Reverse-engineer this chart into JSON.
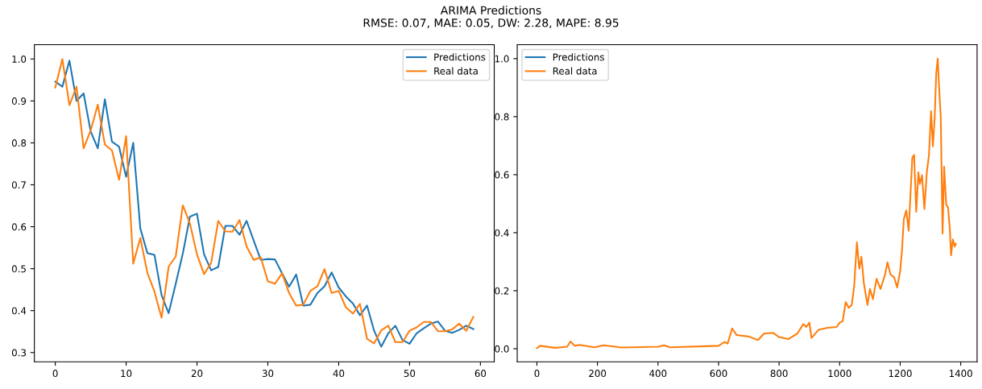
{
  "chart_data": [
    {
      "type": "line",
      "title": "ARIMA Predictions",
      "subtitle": "RMSE: 0.07, MAE: 0.05, DW: 2.28, MAPE: 8.95",
      "x": [
        0,
        1,
        2,
        3,
        4,
        5,
        6,
        7,
        8,
        9,
        10,
        11,
        12,
        13,
        14,
        15,
        16,
        17,
        18,
        19,
        20,
        21,
        22,
        23,
        24,
        25,
        26,
        27,
        28,
        29,
        30,
        31,
        32,
        33,
        34,
        35,
        36,
        37,
        38,
        39,
        40,
        41,
        42,
        43,
        44,
        45,
        46,
        47,
        48,
        49,
        50,
        51,
        52,
        53,
        54,
        55,
        56,
        57,
        58,
        59
      ],
      "series": [
        {
          "name": "Predictions",
          "color": "#1f77b4",
          "values": [
            0.946,
            0.934,
            0.996,
            0.9,
            0.918,
            0.827,
            0.787,
            0.904,
            0.803,
            0.791,
            0.719,
            0.8,
            0.596,
            0.537,
            0.533,
            0.437,
            0.394,
            0.464,
            0.536,
            0.624,
            0.631,
            0.534,
            0.496,
            0.504,
            0.602,
            0.602,
            0.581,
            0.614,
            0.567,
            0.521,
            0.523,
            0.522,
            0.489,
            0.457,
            0.486,
            0.412,
            0.414,
            0.442,
            0.458,
            0.491,
            0.455,
            0.434,
            0.417,
            0.389,
            0.412,
            0.352,
            0.314,
            0.346,
            0.364,
            0.33,
            0.321,
            0.346,
            0.358,
            0.369,
            0.374,
            0.352,
            0.347,
            0.354,
            0.364,
            0.356
          ]
        },
        {
          "name": "Real data",
          "color": "#ff7f0e",
          "values": [
            0.932,
            1.0,
            0.89,
            0.934,
            0.787,
            0.83,
            0.891,
            0.796,
            0.782,
            0.712,
            0.816,
            0.512,
            0.573,
            0.49,
            0.445,
            0.383,
            0.505,
            0.529,
            0.651,
            0.608,
            0.534,
            0.487,
            0.514,
            0.614,
            0.589,
            0.588,
            0.616,
            0.553,
            0.521,
            0.527,
            0.47,
            0.464,
            0.489,
            0.442,
            0.412,
            0.414,
            0.447,
            0.458,
            0.499,
            0.442,
            0.447,
            0.408,
            0.393,
            0.416,
            0.333,
            0.322,
            0.353,
            0.364,
            0.325,
            0.325,
            0.352,
            0.36,
            0.373,
            0.373,
            0.351,
            0.351,
            0.355,
            0.369,
            0.352,
            0.385
          ]
        }
      ],
      "xlim": [
        -2.95,
        61.95
      ],
      "ylim": [
        0.278,
        1.034
      ],
      "xticks": [
        0,
        10,
        20,
        30,
        40,
        50,
        60
      ],
      "yticks": [
        {
          "value": 0.3,
          "label": "0.3"
        },
        {
          "value": 0.4,
          "label": "0.4"
        },
        {
          "value": 0.5,
          "label": "0.5"
        },
        {
          "value": 0.6,
          "label": "0.6"
        },
        {
          "value": 0.7,
          "label": "0.7"
        },
        {
          "value": 0.8,
          "label": "0.8"
        },
        {
          "value": 0.9,
          "label": "0.9"
        },
        {
          "value": 1.0,
          "label": "1.0"
        }
      ],
      "legend": "top right",
      "grid": false
    },
    {
      "type": "line",
      "x": [
        0,
        10,
        60,
        100,
        111,
        125,
        140,
        190,
        220,
        280,
        400,
        420,
        440,
        600,
        620,
        630,
        645,
        660,
        700,
        730,
        750,
        780,
        800,
        830,
        860,
        880,
        890,
        900,
        907,
        930,
        960,
        990,
        1000,
        1010,
        1020,
        1030,
        1040,
        1048,
        1057,
        1065,
        1072,
        1080,
        1092,
        1100,
        1110,
        1122,
        1135,
        1150,
        1158,
        1168,
        1180,
        1190,
        1200,
        1206,
        1212,
        1220,
        1228,
        1240,
        1246,
        1253,
        1260,
        1265,
        1272,
        1280,
        1288,
        1295,
        1302,
        1308,
        1314,
        1319,
        1324,
        1328,
        1334,
        1340,
        1345,
        1352,
        1358,
        1364,
        1368,
        1374,
        1380,
        1384
      ],
      "series": [
        {
          "name": "Predictions",
          "color": "#1f77b4",
          "values": [
            null,
            null,
            null,
            null,
            null,
            null,
            null,
            null,
            null,
            null,
            null,
            null,
            null,
            null,
            null,
            null,
            null,
            null,
            null,
            null,
            null,
            null,
            null,
            null,
            null,
            null,
            null,
            null,
            null,
            null,
            null,
            null,
            null,
            null,
            null,
            null,
            null,
            null,
            null,
            null,
            null,
            null,
            null,
            null,
            null,
            null,
            null,
            null,
            null,
            null,
            null,
            null,
            null,
            null,
            null,
            null,
            null,
            null,
            null,
            null,
            null,
            null,
            null,
            null,
            null,
            null,
            null,
            null,
            null,
            null,
            null,
            null,
            null,
            null,
            null,
            null,
            null,
            null,
            null,
            null,
            null,
            null
          ]
        },
        {
          "name": "Real data",
          "color": "#ff7f0e",
          "values": [
            0.002,
            0.01,
            0.003,
            0.007,
            0.025,
            0.01,
            0.013,
            0.005,
            0.012,
            0.004,
            0.007,
            0.012,
            0.005,
            0.01,
            0.023,
            0.018,
            0.07,
            0.047,
            0.042,
            0.03,
            0.052,
            0.055,
            0.04,
            0.033,
            0.052,
            0.085,
            0.075,
            0.09,
            0.037,
            0.065,
            0.072,
            0.075,
            0.09,
            0.095,
            0.161,
            0.141,
            0.151,
            0.216,
            0.367,
            0.276,
            0.317,
            0.226,
            0.151,
            0.206,
            0.171,
            0.241,
            0.206,
            0.256,
            0.298,
            0.256,
            0.246,
            0.211,
            0.268,
            0.34,
            0.447,
            0.477,
            0.407,
            0.658,
            0.668,
            0.472,
            0.608,
            0.568,
            0.598,
            0.482,
            0.608,
            0.668,
            0.819,
            0.698,
            0.799,
            0.95,
            1.0,
            0.91,
            0.799,
            0.397,
            0.628,
            0.497,
            0.487,
            0.412,
            0.322,
            0.377,
            0.352,
            0.362
          ]
        }
      ],
      "xlim": [
        -65,
        1454
      ],
      "ylim": [
        -0.045,
        1.048
      ],
      "xticks": [
        0,
        200,
        400,
        600,
        800,
        1000,
        1200,
        1400
      ],
      "yticks": [
        {
          "value": 0.0,
          "label": "0.0"
        },
        {
          "value": 0.2,
          "label": "0.2"
        },
        {
          "value": 0.4,
          "label": "0.4"
        },
        {
          "value": 0.6,
          "label": "0.6"
        },
        {
          "value": 0.8,
          "label": "0.8"
        },
        {
          "value": 1.0,
          "label": "1.0"
        }
      ],
      "legend": "top left",
      "grid": false
    }
  ]
}
